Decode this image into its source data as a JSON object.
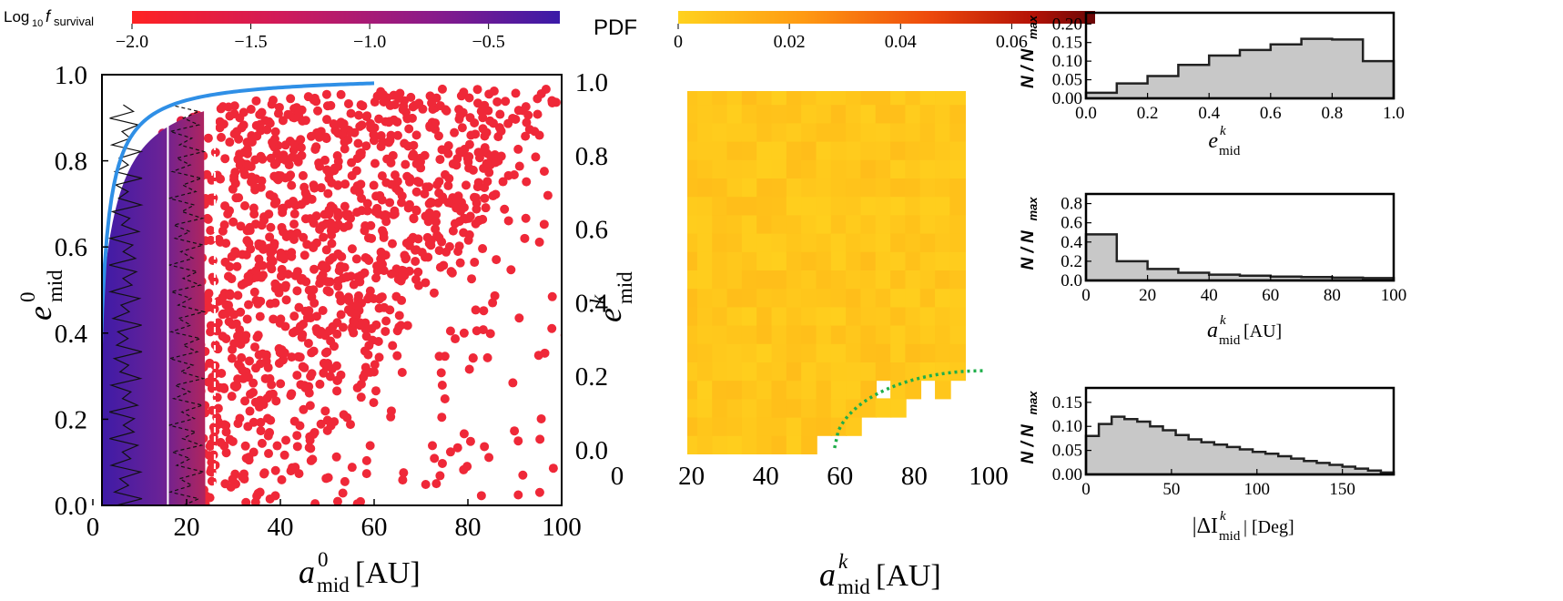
{
  "chart_data": [
    {
      "type": "scatter",
      "panel": "left",
      "xlabel": "a",
      "xlabel_sup": "0",
      "xlabel_sub": "mid",
      "xlabel_unit": " [AU]",
      "ylabel": "e",
      "ylabel_sup": "0",
      "ylabel_sub": "mid",
      "xlim": [
        0,
        100
      ],
      "ylim": [
        0,
        1
      ],
      "xticks": [
        "0",
        "20",
        "40",
        "60",
        "80",
        "100"
      ],
      "yticks": [
        "0.0",
        "0.2",
        "0.4",
        "0.6",
        "0.8",
        "1.0"
      ],
      "colorbar": {
        "label_prefix": "Log",
        "label_sub": "10",
        "label_f": "f",
        "label_fsub": "survival",
        "range": [
          -2.0,
          -0.2
        ],
        "ticks": [
          "−2.0",
          "−1.5",
          "−1.0",
          "−0.5"
        ],
        "tick_values": [
          -2.0,
          -1.5,
          -1.0,
          -0.5
        ],
        "colors": [
          "#ff2222",
          "#d01a5a",
          "#8a1a8a",
          "#3a1aa8"
        ]
      },
      "boundary_curve_color": "#2f8fe6",
      "vertical_lines": [
        16,
        26
      ],
      "point_color": "#ef2838",
      "dense_color": "#4a2496"
    },
    {
      "type": "heatmap",
      "panel": "middle",
      "xlabel": "a",
      "xlabel_sup": "k",
      "xlabel_sub": "mid",
      "xlabel_unit": " [AU]",
      "ylabel": "e",
      "ylabel_sup": "k",
      "ylabel_sub": "mid",
      "xlim": [
        0,
        100
      ],
      "ylim": [
        0,
        1
      ],
      "xticks": [
        "0",
        "20",
        "40",
        "60",
        "80",
        "100"
      ],
      "yticks": [
        "0.0",
        "0.2",
        "0.4",
        "0.6",
        "0.8",
        "1.0"
      ],
      "colorbar": {
        "label": "PDF",
        "range": [
          0,
          0.075
        ],
        "ticks": [
          "0",
          "0.02",
          "0.04",
          "0.06"
        ],
        "tick_values": [
          0,
          0.02,
          0.04,
          0.06
        ],
        "colors": [
          "#ffd21e",
          "#ff9a12",
          "#ee4a0c",
          "#b41206",
          "#6a0606"
        ]
      },
      "dotted_curve_color": "#1fae4a"
    },
    {
      "type": "histogram",
      "panel": "right-top",
      "ylabel": "N / N",
      "ylabel_sub": "max",
      "xlabel": "e",
      "xlabel_sup": "k",
      "xlabel_sub": "mid",
      "xlabel_unit": "",
      "xlim": [
        0,
        1
      ],
      "ylim": [
        0,
        0.23
      ],
      "xticks": [
        "0.0",
        "0.2",
        "0.4",
        "0.6",
        "0.8",
        "1.0"
      ],
      "xtick_values": [
        0,
        0.2,
        0.4,
        0.6,
        0.8,
        1.0
      ],
      "yticks": [
        "0.00",
        "0.05",
        "0.10",
        "0.15",
        "0.20"
      ],
      "ytick_values": [
        0,
        0.05,
        0.1,
        0.15,
        0.2
      ],
      "bin_edges": [
        0,
        0.1,
        0.2,
        0.3,
        0.4,
        0.5,
        0.6,
        0.7,
        0.8,
        0.9,
        1.0
      ],
      "values": [
        0.015,
        0.04,
        0.06,
        0.09,
        0.115,
        0.13,
        0.145,
        0.16,
        0.158,
        0.1
      ],
      "fill": "#c8c8c8"
    },
    {
      "type": "histogram",
      "panel": "right-middle",
      "ylabel": "N / N",
      "ylabel_sub": "max",
      "xlabel": "a",
      "xlabel_sup": "k",
      "xlabel_sub": "mid",
      "xlabel_unit": " [AU]",
      "xlim": [
        0,
        100
      ],
      "ylim": [
        0,
        0.9
      ],
      "xticks": [
        "0",
        "20",
        "40",
        "60",
        "80",
        "100"
      ],
      "xtick_values": [
        0,
        20,
        40,
        60,
        80,
        100
      ],
      "yticks": [
        "0.0",
        "0.2",
        "0.4",
        "0.6",
        "0.8"
      ],
      "ytick_values": [
        0,
        0.2,
        0.4,
        0.6,
        0.8
      ],
      "bin_edges": [
        0,
        10,
        20,
        30,
        40,
        50,
        60,
        70,
        80,
        90,
        100
      ],
      "values": [
        0.48,
        0.2,
        0.12,
        0.08,
        0.06,
        0.05,
        0.04,
        0.035,
        0.03,
        0.025
      ],
      "fill": "#c8c8c8"
    },
    {
      "type": "histogram",
      "panel": "right-bottom",
      "ylabel": "N / N",
      "ylabel_sub": "max",
      "xlabel": "|ΔI",
      "xlabel_sup": "k",
      "xlabel_sub": "mid",
      "xlabel_unit": "| [Deg]",
      "xlim": [
        0,
        180
      ],
      "ylim": [
        0,
        0.18
      ],
      "xticks": [
        "0",
        "50",
        "100",
        "150"
      ],
      "xtick_values": [
        0,
        50,
        100,
        150
      ],
      "yticks": [
        "0.00",
        "0.05",
        "0.10",
        "0.15"
      ],
      "ytick_values": [
        0,
        0.05,
        0.1,
        0.15
      ],
      "bin_edges": [
        0,
        7.5,
        15,
        22.5,
        30,
        37.5,
        45,
        52.5,
        60,
        67.5,
        75,
        82.5,
        90,
        97.5,
        105,
        112.5,
        120,
        127.5,
        135,
        142.5,
        150,
        157.5,
        165,
        172.5,
        180
      ],
      "values": [
        0.08,
        0.105,
        0.12,
        0.115,
        0.11,
        0.1,
        0.092,
        0.082,
        0.073,
        0.067,
        0.062,
        0.057,
        0.052,
        0.047,
        0.043,
        0.038,
        0.033,
        0.028,
        0.024,
        0.02,
        0.016,
        0.012,
        0.008,
        0.004
      ],
      "fill": "#c8c8c8"
    }
  ]
}
